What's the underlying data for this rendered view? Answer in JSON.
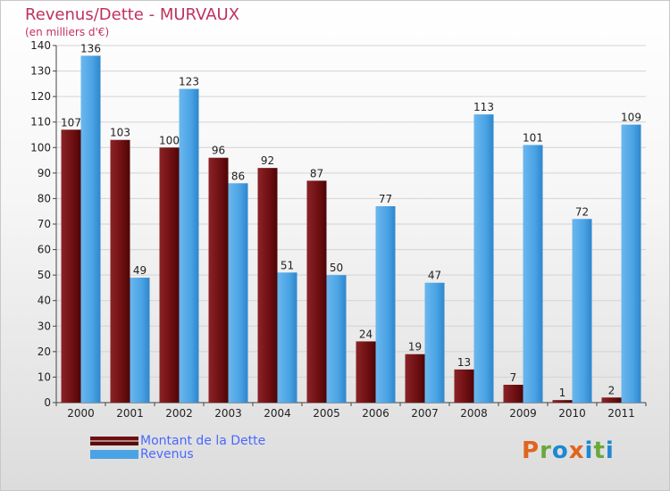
{
  "title": "Revenus/Dette - MURVAUX",
  "subtitle": "(en milliers d'€)",
  "colors": {
    "dette": "#6e0f12",
    "revenus": "#4aa3e4",
    "title": "#c0315c",
    "legend_text": "#4a68ff"
  },
  "legend": {
    "dette_label": "Montant de la Dette",
    "revenus_label": "Revenus"
  },
  "logo": {
    "text": "Proxiti",
    "letter_colors": [
      "#e0651d",
      "#6aa83a",
      "#1e88d0",
      "#e0651d",
      "#1e88d0",
      "#6aa83a",
      "#1e88d0"
    ]
  },
  "chart_data": {
    "type": "bar",
    "categories": [
      "2000",
      "2001",
      "2002",
      "2003",
      "2004",
      "2005",
      "2006",
      "2007",
      "2008",
      "2009",
      "2010",
      "2011"
    ],
    "series": [
      {
        "name": "Montant de la Dette",
        "values": [
          107,
          103,
          100,
          96,
          92,
          87,
          24,
          19,
          13,
          7,
          1,
          2
        ]
      },
      {
        "name": "Revenus",
        "values": [
          136,
          49,
          123,
          86,
          51,
          50,
          77,
          47,
          113,
          101,
          72,
          109
        ]
      }
    ],
    "yticks": [
      0,
      10,
      20,
      30,
      40,
      50,
      60,
      70,
      80,
      90,
      100,
      110,
      120,
      130,
      140
    ],
    "ylim": [
      0,
      140
    ],
    "title": "Revenus/Dette - MURVAUX",
    "ylabel": "(en milliers d'€)",
    "grid": true,
    "legend": "bottom-left"
  }
}
